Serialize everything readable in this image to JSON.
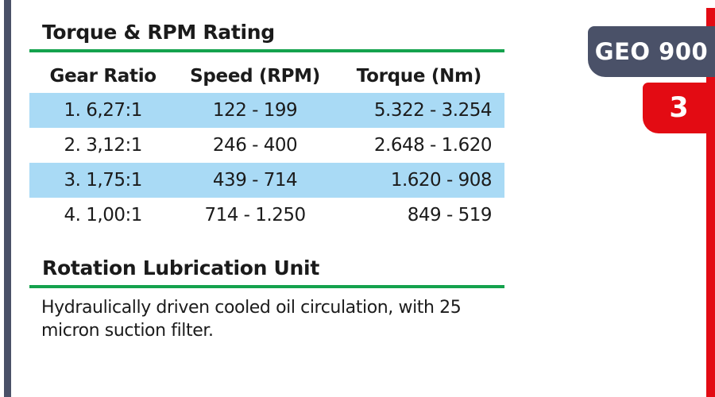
{
  "colors": {
    "accent_slate": "#4a5168",
    "accent_red": "#e30b13",
    "rule_green": "#14a24d",
    "row_highlight_blue": "#a9daf5",
    "text": "#1b1b1b"
  },
  "badges": {
    "model": "GEO 900",
    "page_number": "3"
  },
  "torque_section": {
    "title": "Torque & RPM Rating",
    "table": {
      "columns": [
        "Gear Ratio",
        "Speed (RPM)",
        "Torque (Nm)"
      ],
      "rows": [
        [
          "1. 6,27:1",
          "122 - 199",
          "5.322 - 3.254"
        ],
        [
          "2. 3,12:1",
          "246 - 400",
          "2.648 - 1.620"
        ],
        [
          "3. 1,75:1",
          "439 - 714",
          "1.620 - 908"
        ],
        [
          "4. 1,00:1",
          "714 - 1.250",
          "849 - 519"
        ]
      ]
    }
  },
  "lubrication_section": {
    "title": "Rotation Lubrication Unit",
    "body_lines": [
      "Hydraulically driven cooled oil circulation, with 25",
      "micron suction filter."
    ]
  }
}
